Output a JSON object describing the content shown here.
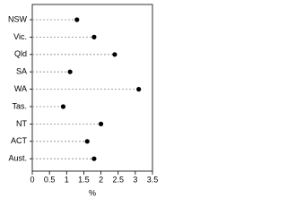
{
  "chart_data": {
    "type": "dot",
    "categories": [
      "NSW",
      "Vic.",
      "Qld",
      "SA",
      "WA",
      "Tas.",
      "NT",
      "ACT",
      "Aust."
    ],
    "values": [
      1.3,
      1.8,
      2.4,
      1.1,
      3.1,
      0.9,
      2.0,
      1.6,
      1.8
    ],
    "color": "#000000",
    "xlim": [
      0,
      3.5
    ],
    "xticks": [
      0,
      0.5,
      1,
      1.5,
      2,
      2.5,
      3,
      3.5
    ],
    "x_label": "%"
  }
}
